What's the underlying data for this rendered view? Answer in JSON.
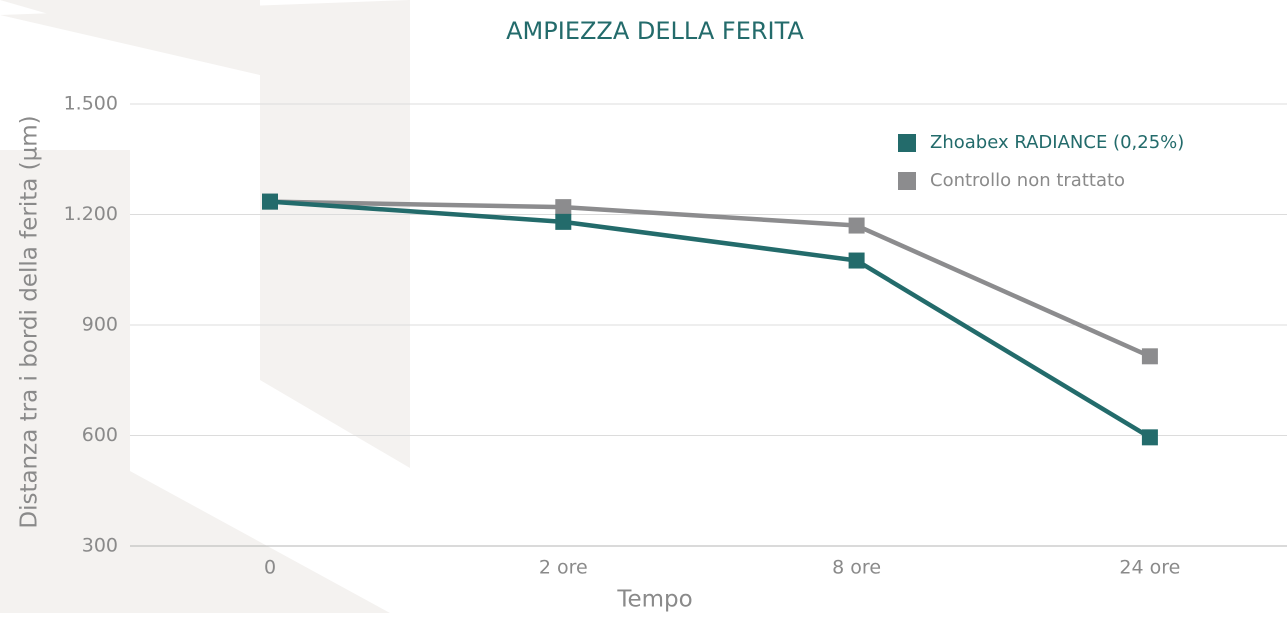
{
  "chart_data": {
    "type": "line",
    "title": "AMPIEZZA DELLA FERITA",
    "y_label": "Distanza tra i bordi della ferita (µm)",
    "x_label": "Tempo",
    "categories": [
      "0",
      "2 ore",
      "8 ore",
      "24 ore"
    ],
    "series": [
      {
        "name": "Zhoabex RADIANCE (0,25%)",
        "color": "#236b6b",
        "values": [
          1235,
          1180,
          1075,
          595
        ]
      },
      {
        "name": "Controllo non trattato",
        "color": "#8c8c8e",
        "values": [
          1235,
          1220,
          1170,
          815
        ]
      }
    ],
    "ylim": [
      300,
      1500
    ],
    "yticks": [
      300,
      600,
      900,
      {
        "value": 1200,
        "label": "1.200"
      },
      {
        "value": 1500,
        "label": "1.500"
      }
    ],
    "grid": true,
    "legend": "upper right"
  }
}
